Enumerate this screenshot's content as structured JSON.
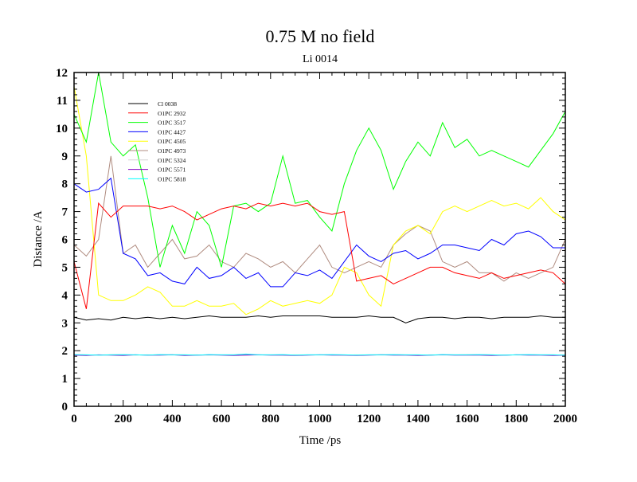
{
  "chart_data": {
    "type": "line",
    "title": "0.75 M no field",
    "subtitle": "Li 0014",
    "xlabel": "Time /ps",
    "ylabel": "Distance /A",
    "xlim": [
      0,
      2000
    ],
    "ylim": [
      0,
      12
    ],
    "xticks": [
      0,
      200,
      400,
      600,
      800,
      1000,
      1200,
      1400,
      1600,
      1800,
      2000
    ],
    "yticks": [
      0,
      1,
      2,
      3,
      4,
      5,
      6,
      7,
      8,
      9,
      10,
      11,
      12
    ],
    "grid": false,
    "legend_position": "top-left",
    "x": [
      0,
      50,
      100,
      150,
      200,
      250,
      300,
      350,
      400,
      450,
      500,
      550,
      600,
      650,
      700,
      750,
      800,
      850,
      900,
      950,
      1000,
      1050,
      1100,
      1150,
      1200,
      1250,
      1300,
      1350,
      1400,
      1450,
      1500,
      1550,
      1600,
      1650,
      1700,
      1750,
      1800,
      1850,
      1900,
      1950,
      2000
    ],
    "series": [
      {
        "name": "Cl 0038",
        "color": "#000000",
        "values": [
          3.2,
          3.1,
          3.15,
          3.1,
          3.2,
          3.15,
          3.2,
          3.15,
          3.2,
          3.15,
          3.2,
          3.25,
          3.2,
          3.2,
          3.2,
          3.25,
          3.2,
          3.25,
          3.25,
          3.25,
          3.25,
          3.2,
          3.2,
          3.2,
          3.25,
          3.2,
          3.2,
          3.0,
          3.15,
          3.2,
          3.2,
          3.15,
          3.2,
          3.2,
          3.15,
          3.2,
          3.2,
          3.2,
          3.25,
          3.2,
          3.2
        ]
      },
      {
        "name": "O1PC 2932",
        "color": "#ff0000",
        "values": [
          5.2,
          3.5,
          7.3,
          6.8,
          7.2,
          7.2,
          7.2,
          7.1,
          7.2,
          7.0,
          6.7,
          6.9,
          7.1,
          7.2,
          7.1,
          7.3,
          7.2,
          7.3,
          7.2,
          7.3,
          7.0,
          6.9,
          7.0,
          4.5,
          4.6,
          4.7,
          4.4,
          4.6,
          4.8,
          5.0,
          5.0,
          4.8,
          4.7,
          4.6,
          4.8,
          4.6,
          4.7,
          4.8,
          4.9,
          4.8,
          4.4
        ]
      },
      {
        "name": "O1PC 3517",
        "color": "#00ff00",
        "values": [
          10.5,
          9.5,
          12.0,
          9.5,
          9.0,
          9.4,
          7.5,
          5.0,
          6.5,
          5.5,
          7.0,
          6.5,
          5.0,
          7.2,
          7.3,
          7.0,
          7.3,
          9.0,
          7.3,
          7.4,
          6.8,
          6.3,
          8.0,
          9.2,
          10.0,
          9.2,
          7.8,
          8.8,
          9.5,
          9.0,
          10.2,
          9.3,
          9.6,
          9.0,
          9.2,
          9.0,
          8.8,
          8.6,
          9.2,
          9.8,
          10.6
        ]
      },
      {
        "name": "O1PC 4427",
        "color": "#0000ff",
        "values": [
          8.0,
          7.7,
          7.8,
          8.2,
          5.5,
          5.3,
          4.7,
          4.8,
          4.5,
          4.4,
          5.0,
          4.6,
          4.7,
          5.0,
          4.6,
          4.8,
          4.3,
          4.3,
          4.8,
          4.7,
          4.9,
          4.6,
          5.2,
          5.8,
          5.4,
          5.2,
          5.5,
          5.6,
          5.3,
          5.5,
          5.8,
          5.8,
          5.7,
          5.6,
          6.0,
          5.8,
          6.2,
          6.3,
          6.1,
          5.7,
          5.7
        ]
      },
      {
        "name": "O1PC 4505",
        "color": "#ffff00",
        "values": [
          11.5,
          9.0,
          4.0,
          3.8,
          3.8,
          4.0,
          4.3,
          4.1,
          3.6,
          3.6,
          3.8,
          3.6,
          3.6,
          3.7,
          3.3,
          3.5,
          3.8,
          3.6,
          3.7,
          3.8,
          3.7,
          4.0,
          5.0,
          4.8,
          4.0,
          3.6,
          5.8,
          6.3,
          6.5,
          6.2,
          7.0,
          7.2,
          7.0,
          7.2,
          7.4,
          7.2,
          7.3,
          7.1,
          7.5,
          7.0,
          6.7
        ]
      },
      {
        "name": "O1PC 4973",
        "color": "#b08c80",
        "values": [
          5.8,
          5.4,
          6.0,
          9.0,
          5.5,
          5.8,
          5.0,
          5.5,
          6.0,
          5.3,
          5.4,
          5.8,
          5.2,
          5.0,
          5.5,
          5.3,
          5.0,
          5.2,
          4.8,
          5.3,
          5.8,
          5.0,
          4.8,
          5.0,
          5.2,
          5.0,
          5.8,
          6.2,
          6.5,
          6.3,
          5.2,
          5.0,
          5.2,
          4.8,
          4.8,
          4.5,
          4.8,
          4.6,
          4.8,
          5.0,
          6.0
        ]
      },
      {
        "name": "O1PC 5324",
        "color": "#d3d3d3",
        "values": [
          1.85,
          1.85,
          1.84,
          1.86,
          1.85,
          1.84,
          1.85,
          1.85,
          1.86,
          1.85,
          1.85,
          1.84,
          1.85,
          1.85,
          1.86,
          1.85,
          1.85,
          1.84,
          1.85,
          1.85,
          1.85,
          1.85,
          1.84,
          1.85,
          1.85,
          1.86,
          1.85,
          1.85,
          1.84,
          1.85,
          1.85,
          1.85,
          1.86,
          1.85,
          1.85,
          1.84,
          1.85,
          1.85,
          1.85,
          1.85,
          1.84
        ]
      },
      {
        "name": "O1PC 5571",
        "color": "#8000c0",
        "values": [
          1.84,
          1.83,
          1.85,
          1.84,
          1.83,
          1.85,
          1.84,
          1.84,
          1.85,
          1.83,
          1.84,
          1.85,
          1.84,
          1.83,
          1.84,
          1.85,
          1.84,
          1.84,
          1.83,
          1.84,
          1.85,
          1.84,
          1.84,
          1.83,
          1.84,
          1.85,
          1.84,
          1.84,
          1.83,
          1.84,
          1.85,
          1.84,
          1.84,
          1.84,
          1.83,
          1.84,
          1.85,
          1.84,
          1.84,
          1.83,
          1.84
        ]
      },
      {
        "name": "O1PC 5818",
        "color": "#00ffff",
        "values": [
          1.86,
          1.85,
          1.84,
          1.85,
          1.86,
          1.85,
          1.84,
          1.86,
          1.85,
          1.85,
          1.84,
          1.86,
          1.85,
          1.85,
          1.88,
          1.85,
          1.85,
          1.86,
          1.84,
          1.85,
          1.85,
          1.86,
          1.85,
          1.84,
          1.85,
          1.85,
          1.86,
          1.85,
          1.85,
          1.84,
          1.86,
          1.85,
          1.85,
          1.86,
          1.85,
          1.84,
          1.85,
          1.86,
          1.85,
          1.85,
          1.84
        ]
      }
    ]
  }
}
